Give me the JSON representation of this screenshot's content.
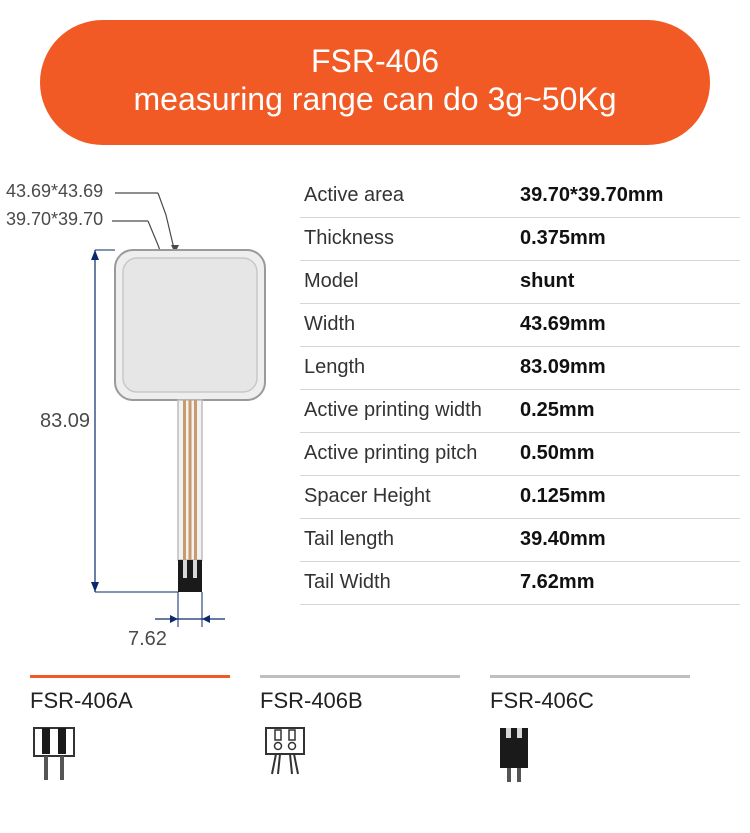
{
  "header": {
    "line1": "FSR-406",
    "line2": "measuring range can do 3g~50Kg",
    "bg_color": "#f15a24",
    "text_color": "#ffffff"
  },
  "diagram": {
    "label_outer": "43.69*43.69",
    "label_inner": "39.70*39.70",
    "label_length": "83.09",
    "label_tail_width": "7.62",
    "dim_line_color": "#0a2a6b",
    "sensor_outer_fill": "#eeeeee",
    "sensor_inner_fill": "#e6e6e6",
    "sensor_stroke": "#9a9a9a",
    "tail_fill": "#f2f2f2",
    "trace_color": "#c89b6e",
    "connector_fill": "#1a1a1a",
    "label_fontsize": 18,
    "label_color": "#4a4a4a"
  },
  "specs": [
    {
      "label": "Active area",
      "value": "39.70*39.70mm"
    },
    {
      "label": "Thickness",
      "value": "0.375mm"
    },
    {
      "label": "Model",
      "value": "shunt"
    },
    {
      "label": "Width",
      "value": "43.69mm"
    },
    {
      "label": "Length",
      "value": "83.09mm"
    },
    {
      "label": "Active printing width",
      "value": "0.25mm"
    },
    {
      "label": "Active printing pitch",
      "value": "0.50mm"
    },
    {
      "label": "Spacer Height",
      "value": "0.125mm"
    },
    {
      "label": "Tail length",
      "value": "39.40mm"
    },
    {
      "label": "Tail Width",
      "value": "7.62mm"
    }
  ],
  "spec_style": {
    "border_color": "#d6d6d6",
    "label_color": "#333333",
    "value_color": "#111111",
    "fontsize": 20
  },
  "variants": [
    {
      "label": "FSR-406A",
      "bar_color": "#f15a24",
      "type": "A"
    },
    {
      "label": "FSR-406B",
      "bar_color": "#bfbfbf",
      "type": "B"
    },
    {
      "label": "FSR-406C",
      "bar_color": "#bfbfbf",
      "type": "C"
    }
  ],
  "variant_style": {
    "label_fontsize": 22,
    "label_color": "#222222"
  }
}
